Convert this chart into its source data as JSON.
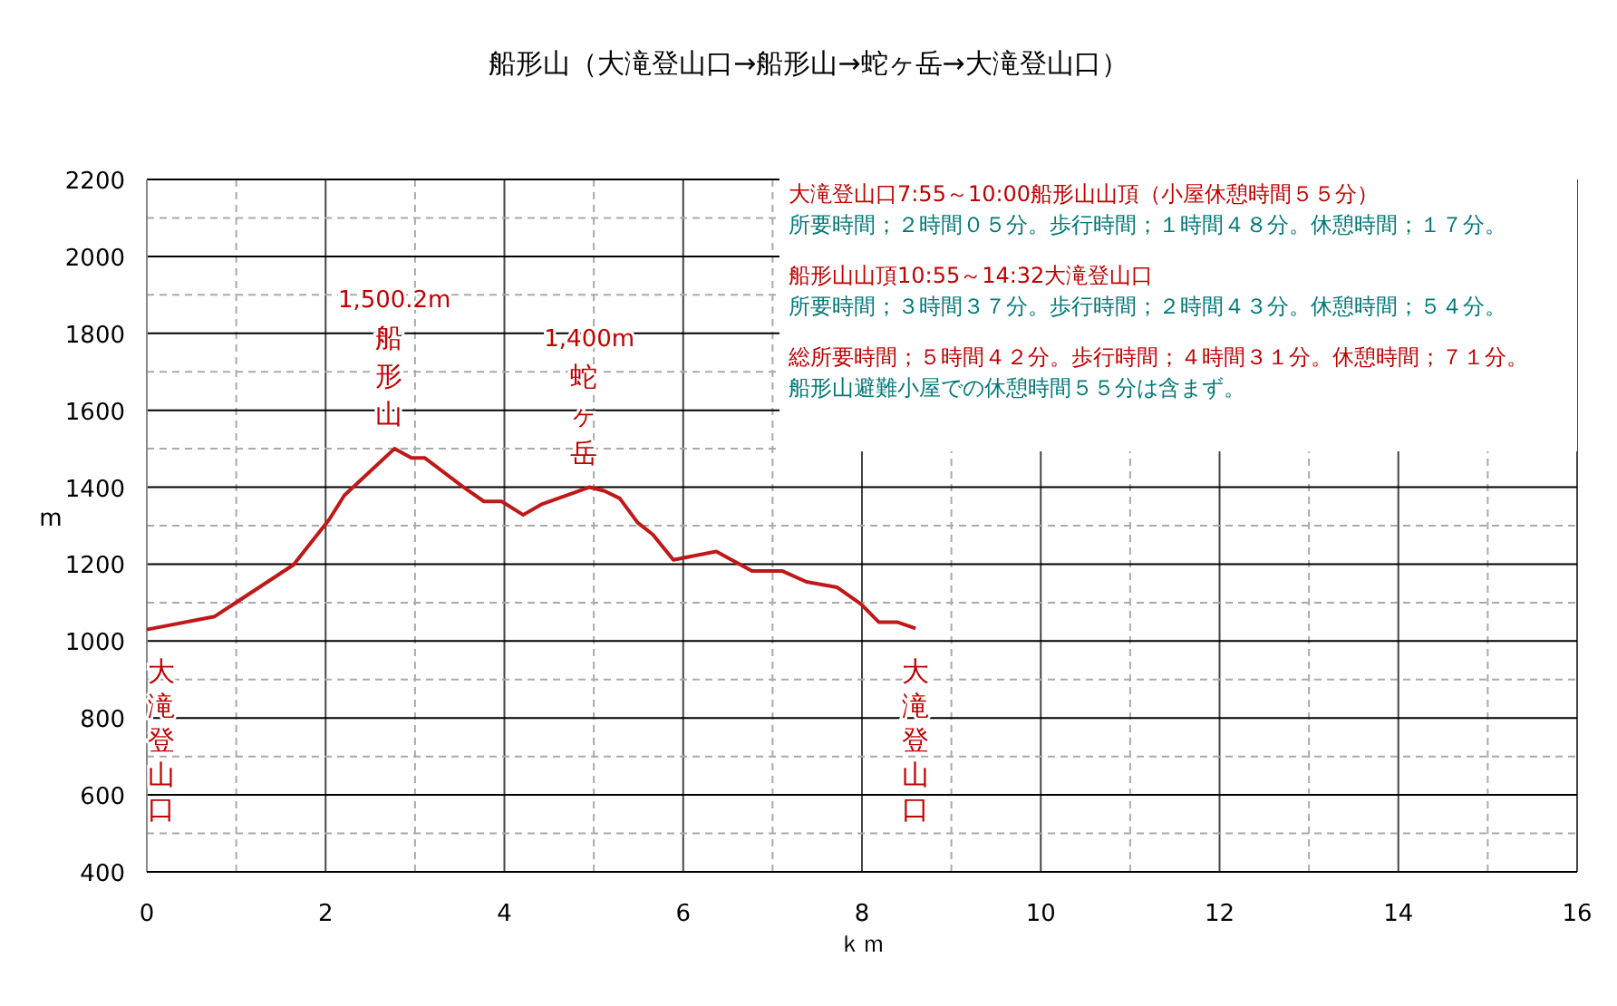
{
  "chart_data": {
    "type": "line",
    "title": "船形山（大滝登山口→船形山→蛇ヶ岳→大滝登山口）",
    "xlabel": "ｋｍ",
    "ylabel": "m",
    "x": [
      0,
      0.76,
      1.64,
      2.04,
      2.21,
      2.77,
      2.96,
      3.11,
      3.53,
      3.77,
      3.97,
      4.21,
      4.41,
      4.95,
      5.12,
      5.29,
      5.49,
      5.66,
      5.89,
      6.37,
      6.77,
      7.11,
      7.38,
      7.72,
      7.99,
      8.19,
      8.4,
      8.6
    ],
    "series": [
      {
        "color": "#c01818",
        "values": [
          1030,
          1064,
          1198,
          1316,
          1379,
          1500,
          1476,
          1476,
          1402,
          1363,
          1363,
          1328,
          1355,
          1400,
          1390,
          1371,
          1308,
          1277,
          1211,
          1233,
          1182,
          1182,
          1154,
          1140,
          1096,
          1049,
          1049,
          1033
        ]
      }
    ],
    "xlim": [
      0,
      16
    ],
    "xticks": [
      0,
      2,
      4,
      6,
      8,
      10,
      12,
      14,
      16
    ],
    "ylim": [
      400,
      2200
    ],
    "yticks": [
      400,
      600,
      800,
      1000,
      1200,
      1400,
      1600,
      1800,
      2000,
      2200
    ],
    "grid": true,
    "line_style": "solid",
    "annotations": [
      "大滝登山口7:55～10:00船形山山頂（小屋休憩時間５５分）",
      "所要時間；２時間０５分。歩行時間；１時間４８分。休憩時間；１７分。",
      "船形山山頂10:55～14:32大滝登山口",
      "所要時間；３時間３７分。歩行時間；２時間４３分。休憩時間；５４分。",
      "総所要時間；５時間４２分。歩行時間；４時間３１分。休憩時間；７１分。",
      "船形山避難小屋での休憩時間５５分は含まず。",
      {
        "text": "1,500.2m 船形山",
        "x": 2.77,
        "y": 1500
      },
      {
        "text": "1,400m 蛇ヶ岳",
        "x": 4.95,
        "y": 1400
      },
      {
        "text": "大滝登山口",
        "x": 0,
        "y": 1030
      },
      {
        "text": "大滝登山口",
        "x": 8.6,
        "y": 1030
      }
    ]
  }
}
